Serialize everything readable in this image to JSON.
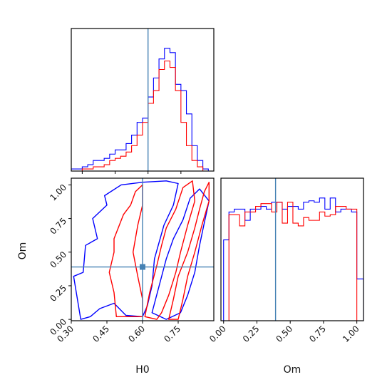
{
  "chart_data": [
    {
      "type": "histogram",
      "panel": "H0 marginal",
      "x_param": "H0",
      "xlim": [
        0.25,
        0.9
      ],
      "truth": 0.6,
      "bin_edges": [
        0.25,
        0.275,
        0.3,
        0.325,
        0.35,
        0.375,
        0.4,
        0.425,
        0.45,
        0.475,
        0.5,
        0.525,
        0.55,
        0.575,
        0.6,
        0.625,
        0.65,
        0.675,
        0.7,
        0.725,
        0.75,
        0.775,
        0.8,
        0.825,
        0.85,
        0.875,
        0.9
      ],
      "series": [
        {
          "color": "#0000ff",
          "values": [
            1,
            1,
            2,
            3,
            5,
            5,
            6,
            8,
            10,
            10,
            13,
            17,
            23,
            25,
            35,
            44,
            53,
            58,
            56,
            41,
            38,
            27,
            12,
            5,
            1,
            0
          ]
        },
        {
          "color": "#ff0000",
          "values": [
            0,
            0,
            1,
            1,
            2,
            2,
            3,
            5,
            6,
            7,
            9,
            12,
            17,
            23,
            32,
            38,
            48,
            52,
            49,
            38,
            23,
            12,
            5,
            2,
            0,
            0
          ]
        }
      ]
    },
    {
      "type": "contour",
      "panel": "H0 vs Om",
      "x_param": "H0",
      "y_param": "Om",
      "xlim": [
        0.3,
        0.9
      ],
      "ylim": [
        -0.01,
        1.05
      ],
      "truth": {
        "x": 0.6,
        "y": 0.39
      },
      "series": [
        {
          "color": "#0000ff",
          "levels": [
            [
              [
                0.31,
                0.32
              ],
              [
                0.35,
                0.35
              ],
              [
                0.36,
                0.55
              ],
              [
                0.41,
                0.6
              ],
              [
                0.39,
                0.75
              ],
              [
                0.45,
                0.85
              ],
              [
                0.44,
                0.92
              ],
              [
                0.51,
                1.0
              ],
              [
                0.6,
                1.02
              ],
              [
                0.7,
                1.03
              ],
              [
                0.75,
                1.01
              ],
              [
                0.73,
                0.85
              ],
              [
                0.69,
                0.7
              ],
              [
                0.65,
                0.45
              ],
              [
                0.64,
                0.25
              ],
              [
                0.62,
                0.1
              ],
              [
                0.6,
                0.02
              ],
              [
                0.53,
                0.03
              ],
              [
                0.48,
                0.12
              ],
              [
                0.42,
                0.08
              ],
              [
                0.38,
                0.02
              ],
              [
                0.34,
                0.0
              ]
            ],
            [
              [
                0.64,
                0.05
              ],
              [
                0.67,
                0.25
              ],
              [
                0.7,
                0.45
              ],
              [
                0.73,
                0.6
              ],
              [
                0.77,
                0.74
              ],
              [
                0.8,
                0.9
              ],
              [
                0.84,
                0.97
              ],
              [
                0.88,
                0.88
              ],
              [
                0.86,
                0.72
              ],
              [
                0.84,
                0.55
              ],
              [
                0.82,
                0.35
              ],
              [
                0.79,
                0.18
              ],
              [
                0.76,
                0.05
              ],
              [
                0.7,
                0.0
              ]
            ]
          ]
        },
        {
          "color": "#ff0000",
          "levels": [
            [
              [
                0.49,
                0.02
              ],
              [
                0.48,
                0.2
              ],
              [
                0.46,
                0.35
              ],
              [
                0.48,
                0.5
              ],
              [
                0.48,
                0.6
              ],
              [
                0.52,
                0.78
              ],
              [
                0.55,
                0.85
              ],
              [
                0.57,
                0.95
              ],
              [
                0.6,
                1.0
              ],
              [
                0.6,
                0.85
              ],
              [
                0.58,
                0.7
              ],
              [
                0.56,
                0.5
              ],
              [
                0.58,
                0.32
              ],
              [
                0.6,
                0.15
              ],
              [
                0.6,
                0.02
              ]
            ],
            [
              [
                0.61,
                0.02
              ],
              [
                0.63,
                0.2
              ],
              [
                0.66,
                0.4
              ],
              [
                0.68,
                0.55
              ],
              [
                0.7,
                0.68
              ],
              [
                0.74,
                0.82
              ],
              [
                0.77,
                0.98
              ],
              [
                0.81,
                1.03
              ],
              [
                0.82,
                0.88
              ],
              [
                0.79,
                0.7
              ],
              [
                0.76,
                0.5
              ],
              [
                0.74,
                0.35
              ],
              [
                0.71,
                0.18
              ],
              [
                0.68,
                0.05
              ],
              [
                0.66,
                0.0
              ]
            ],
            [
              [
                0.71,
                0.0
              ],
              [
                0.73,
                0.15
              ],
              [
                0.75,
                0.32
              ],
              [
                0.79,
                0.5
              ],
              [
                0.82,
                0.68
              ],
              [
                0.84,
                0.82
              ],
              [
                0.86,
                0.95
              ],
              [
                0.88,
                1.02
              ],
              [
                0.88,
                0.88
              ],
              [
                0.85,
                0.7
              ],
              [
                0.82,
                0.5
              ],
              [
                0.79,
                0.32
              ],
              [
                0.77,
                0.15
              ],
              [
                0.75,
                0.0
              ]
            ]
          ]
        }
      ]
    },
    {
      "type": "histogram",
      "panel": "Om marginal",
      "x_param": "Om",
      "xlim": [
        -0.02,
        1.05
      ],
      "truth": 0.39,
      "bin_edges": [
        0.0,
        0.04,
        0.08,
        0.12,
        0.16,
        0.2,
        0.24,
        0.28,
        0.32,
        0.36,
        0.4,
        0.44,
        0.48,
        0.52,
        0.56,
        0.6,
        0.64,
        0.68,
        0.72,
        0.76,
        0.8,
        0.84,
        0.88,
        0.92,
        0.96,
        1.0,
        1.05
      ],
      "series": [
        {
          "color": "#0000ff",
          "values": [
            0.58,
            0.78,
            0.8,
            0.8,
            0.72,
            0.8,
            0.8,
            0.82,
            0.8,
            0.85,
            0.85,
            0.8,
            0.82,
            0.82,
            0.8,
            0.85,
            0.86,
            0.85,
            0.88,
            0.8,
            0.88,
            0.78,
            0.8,
            0.8,
            0.78,
            0.3
          ]
        },
        {
          "color": "#ff0000",
          "values": [
            0,
            0.76,
            0.76,
            0.68,
            0.78,
            0.78,
            0.82,
            0.84,
            0.84,
            0.78,
            0.85,
            0.7,
            0.85,
            0.7,
            0.68,
            0.74,
            0.72,
            0.72,
            0.78,
            0.75,
            0.76,
            0.82,
            0.82,
            0.8,
            0.8,
            0
          ]
        }
      ]
    }
  ],
  "axes": {
    "h0_ticks": [
      {
        "value": 0.3,
        "label": "0.30"
      },
      {
        "value": 0.45,
        "label": "0.45"
      },
      {
        "value": 0.6,
        "label": "0.60"
      },
      {
        "value": 0.75,
        "label": "0.75"
      }
    ],
    "om_y_ticks": [
      {
        "value": 0.0,
        "label": "0.00"
      },
      {
        "value": 0.25,
        "label": "0.25"
      },
      {
        "value": 0.5,
        "label": "0.50"
      },
      {
        "value": 0.75,
        "label": "0.75"
      },
      {
        "value": 1.0,
        "label": "1.00"
      }
    ],
    "om_x_ticks": [
      {
        "value": 0.0,
        "label": "0.00"
      },
      {
        "value": 0.25,
        "label": "0.25"
      },
      {
        "value": 0.5,
        "label": "0.50"
      },
      {
        "value": 0.75,
        "label": "0.75"
      },
      {
        "value": 1.0,
        "label": "1.00"
      }
    ],
    "x_label_h0": "H0",
    "x_label_om": "Om",
    "y_label_om": "Om"
  },
  "truth_color": "#4682b4"
}
